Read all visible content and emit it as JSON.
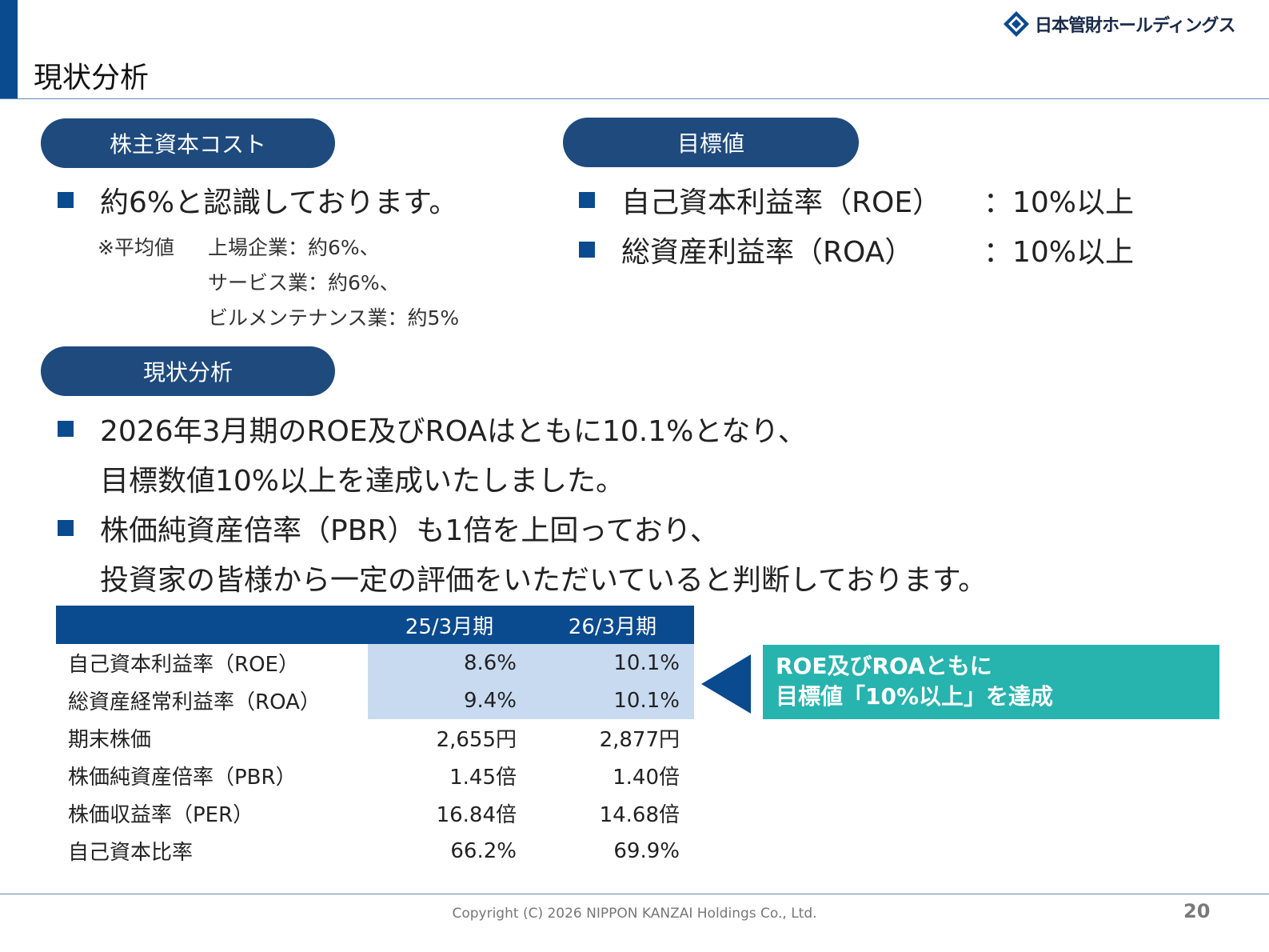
{
  "header": {
    "title": "現状分析",
    "logo_text": "日本管財ホールディングス"
  },
  "cost_section": {
    "pill": "株主資本コスト",
    "bullet": "約6%と認識しております。",
    "note_prefix": "※平均値",
    "note_lines": [
      "上場企業：約6%、",
      "サービス業：約6%、",
      "ビルメンテナンス業：約5%"
    ]
  },
  "target_section": {
    "pill": "目標値",
    "items": [
      {
        "label": "自己資本利益率（ROE）",
        "value": "：10%以上"
      },
      {
        "label": "総資産利益率（ROA）",
        "value": "：10%以上"
      }
    ]
  },
  "analysis_section": {
    "pill": "現状分析",
    "bullets": [
      {
        "line1": "2026年3月期のROE及びROAはともに10.1%となり、",
        "line2": "目標数値10%以上を達成いたしました。"
      },
      {
        "line1": "株価純資産倍率（PBR）も1倍を上回っており、",
        "line2": "投資家の皆様から一定の評価をいただいていると判断しております。"
      }
    ]
  },
  "table": {
    "headers": [
      "",
      "25/3月期",
      "26/3月期"
    ],
    "rows": [
      {
        "label": "自己資本利益率（ROE）",
        "v1": "8.6%",
        "v2": "10.1%"
      },
      {
        "label": "総資産経常利益率（ROA）",
        "v1": "9.4%",
        "v2": "10.1%"
      },
      {
        "label": "期末株価",
        "v1": "2,655円",
        "v2": "2,877円"
      },
      {
        "label": "株価純資産倍率（PBR）",
        "v1": "1.45倍",
        "v2": "1.40倍"
      },
      {
        "label": "株価収益率（PER）",
        "v1": "16.84倍",
        "v2": "14.68倍"
      },
      {
        "label": "自己資本比率",
        "v1": "66.2%",
        "v2": "69.9%"
      }
    ]
  },
  "callout": {
    "line1": "ROE及びROAともに",
    "line2": "目標値「10%以上」を達成"
  },
  "footer": {
    "copyright": "Copyright (C) 2026 NIPPON KANZAI Holdings Co., Ltd.",
    "page_number": "20"
  },
  "colors": {
    "brand_blue": "#0a4a8f",
    "pill_navy": "#1e4a7e",
    "highlight": "#c8daf0",
    "callout_teal": "#27b3ae"
  },
  "icons": {
    "logo": "diamond-logo-icon",
    "bullet": "square-bullet-icon",
    "arrow": "left-triangle-arrow-icon"
  }
}
